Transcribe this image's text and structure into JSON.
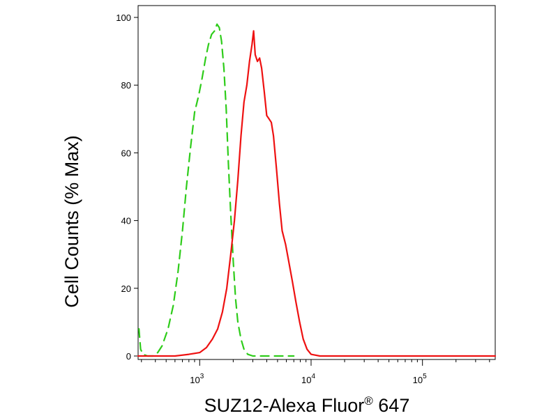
{
  "chart_data": {
    "type": "line",
    "xlabel": "SUZ12-Alexa Fluor",
    "xlabel_sup": "®",
    "xlabel_suffix": " 647",
    "ylabel": "Cell Counts (% Max)",
    "x_scale": "log",
    "xlim": [
      280,
      450000
    ],
    "ylim": [
      0,
      100
    ],
    "x_ticks": [
      {
        "value": 1000,
        "base": "10",
        "exp": "3"
      },
      {
        "value": 10000,
        "base": "10",
        "exp": "4"
      },
      {
        "value": 100000,
        "base": "10",
        "exp": "5"
      }
    ],
    "y_ticks": [
      {
        "value": 0,
        "label": "0"
      },
      {
        "value": 20,
        "label": "20"
      },
      {
        "value": 40,
        "label": "40"
      },
      {
        "value": 60,
        "label": "60"
      },
      {
        "value": 80,
        "label": "80"
      },
      {
        "value": 100,
        "label": "100"
      }
    ],
    "grid": false,
    "series": [
      {
        "color": "#2ecc1a",
        "style": "dashed",
        "points": [
          [
            285,
            8
          ],
          [
            295,
            2
          ],
          [
            310,
            0.5
          ],
          [
            340,
            0
          ],
          [
            380,
            0
          ],
          [
            420,
            1
          ],
          [
            460,
            3
          ],
          [
            520,
            8
          ],
          [
            580,
            15
          ],
          [
            640,
            25
          ],
          [
            700,
            37
          ],
          [
            760,
            50
          ],
          [
            830,
            62
          ],
          [
            900,
            72
          ],
          [
            980,
            77
          ],
          [
            1050,
            82
          ],
          [
            1130,
            88
          ],
          [
            1200,
            92
          ],
          [
            1280,
            95
          ],
          [
            1360,
            96
          ],
          [
            1430,
            98
          ],
          [
            1500,
            97
          ],
          [
            1570,
            93
          ],
          [
            1650,
            85
          ],
          [
            1730,
            73
          ],
          [
            1810,
            57
          ],
          [
            1900,
            42
          ],
          [
            2000,
            28
          ],
          [
            2100,
            17
          ],
          [
            2200,
            10
          ],
          [
            2350,
            5
          ],
          [
            2500,
            2
          ],
          [
            2700,
            0.5
          ],
          [
            3000,
            0
          ],
          [
            5000,
            0
          ],
          [
            7000,
            0
          ]
        ]
      },
      {
        "color": "#ee1111",
        "style": "solid",
        "points": [
          [
            280,
            0
          ],
          [
            600,
            0
          ],
          [
            800,
            0.5
          ],
          [
            1000,
            1
          ],
          [
            1150,
            2.5
          ],
          [
            1300,
            5
          ],
          [
            1450,
            8
          ],
          [
            1600,
            13
          ],
          [
            1750,
            20
          ],
          [
            1900,
            30
          ],
          [
            2050,
            40
          ],
          [
            2200,
            52
          ],
          [
            2350,
            65
          ],
          [
            2500,
            75
          ],
          [
            2650,
            80
          ],
          [
            2800,
            87
          ],
          [
            2950,
            92
          ],
          [
            3050,
            96
          ],
          [
            3150,
            89
          ],
          [
            3300,
            87
          ],
          [
            3450,
            88
          ],
          [
            3600,
            85
          ],
          [
            3800,
            78
          ],
          [
            4000,
            71
          ],
          [
            4200,
            70
          ],
          [
            4400,
            69
          ],
          [
            4600,
            65
          ],
          [
            4900,
            55
          ],
          [
            5200,
            45
          ],
          [
            5500,
            37
          ],
          [
            5900,
            33
          ],
          [
            6300,
            28
          ],
          [
            6800,
            22
          ],
          [
            7300,
            16
          ],
          [
            7900,
            10
          ],
          [
            8500,
            5
          ],
          [
            9200,
            2
          ],
          [
            10000,
            0.5
          ],
          [
            12000,
            0
          ],
          [
            450000,
            0
          ]
        ]
      }
    ]
  }
}
